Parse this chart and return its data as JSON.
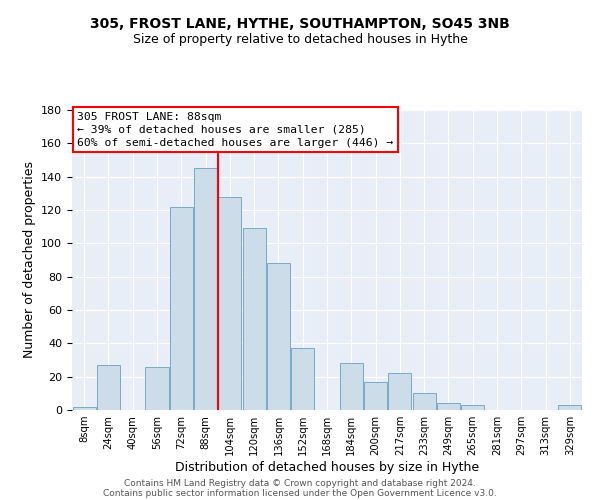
{
  "title1": "305, FROST LANE, HYTHE, SOUTHAMPTON, SO45 3NB",
  "title2": "Size of property relative to detached houses in Hythe",
  "xlabel": "Distribution of detached houses by size in Hythe",
  "ylabel": "Number of detached properties",
  "footer1": "Contains HM Land Registry data © Crown copyright and database right 2024.",
  "footer2": "Contains public sector information licensed under the Open Government Licence v3.0.",
  "bin_labels": [
    "8sqm",
    "24sqm",
    "40sqm",
    "56sqm",
    "72sqm",
    "88sqm",
    "104sqm",
    "120sqm",
    "136sqm",
    "152sqm",
    "168sqm",
    "184sqm",
    "200sqm",
    "217sqm",
    "233sqm",
    "249sqm",
    "265sqm",
    "281sqm",
    "297sqm",
    "313sqm",
    "329sqm"
  ],
  "bar_values": [
    2,
    27,
    0,
    26,
    122,
    145,
    128,
    109,
    88,
    37,
    0,
    28,
    17,
    22,
    10,
    4,
    3,
    0,
    0,
    0,
    3
  ],
  "bar_color": "#ccdce8",
  "bar_edge_color": "#7aaac8",
  "vline_x_index": 5,
  "vline_color": "red",
  "annotation_title": "305 FROST LANE: 88sqm",
  "annotation_line1": "← 39% of detached houses are smaller (285)",
  "annotation_line2": "60% of semi-detached houses are larger (446) →",
  "annotation_box_color": "red",
  "ylim": [
    0,
    180
  ],
  "yticks": [
    0,
    20,
    40,
    60,
    80,
    100,
    120,
    140,
    160,
    180
  ],
  "bg_color": "#e8eef8",
  "fig_bg_color": "#ffffff",
  "title1_fontsize": 10,
  "title2_fontsize": 9
}
